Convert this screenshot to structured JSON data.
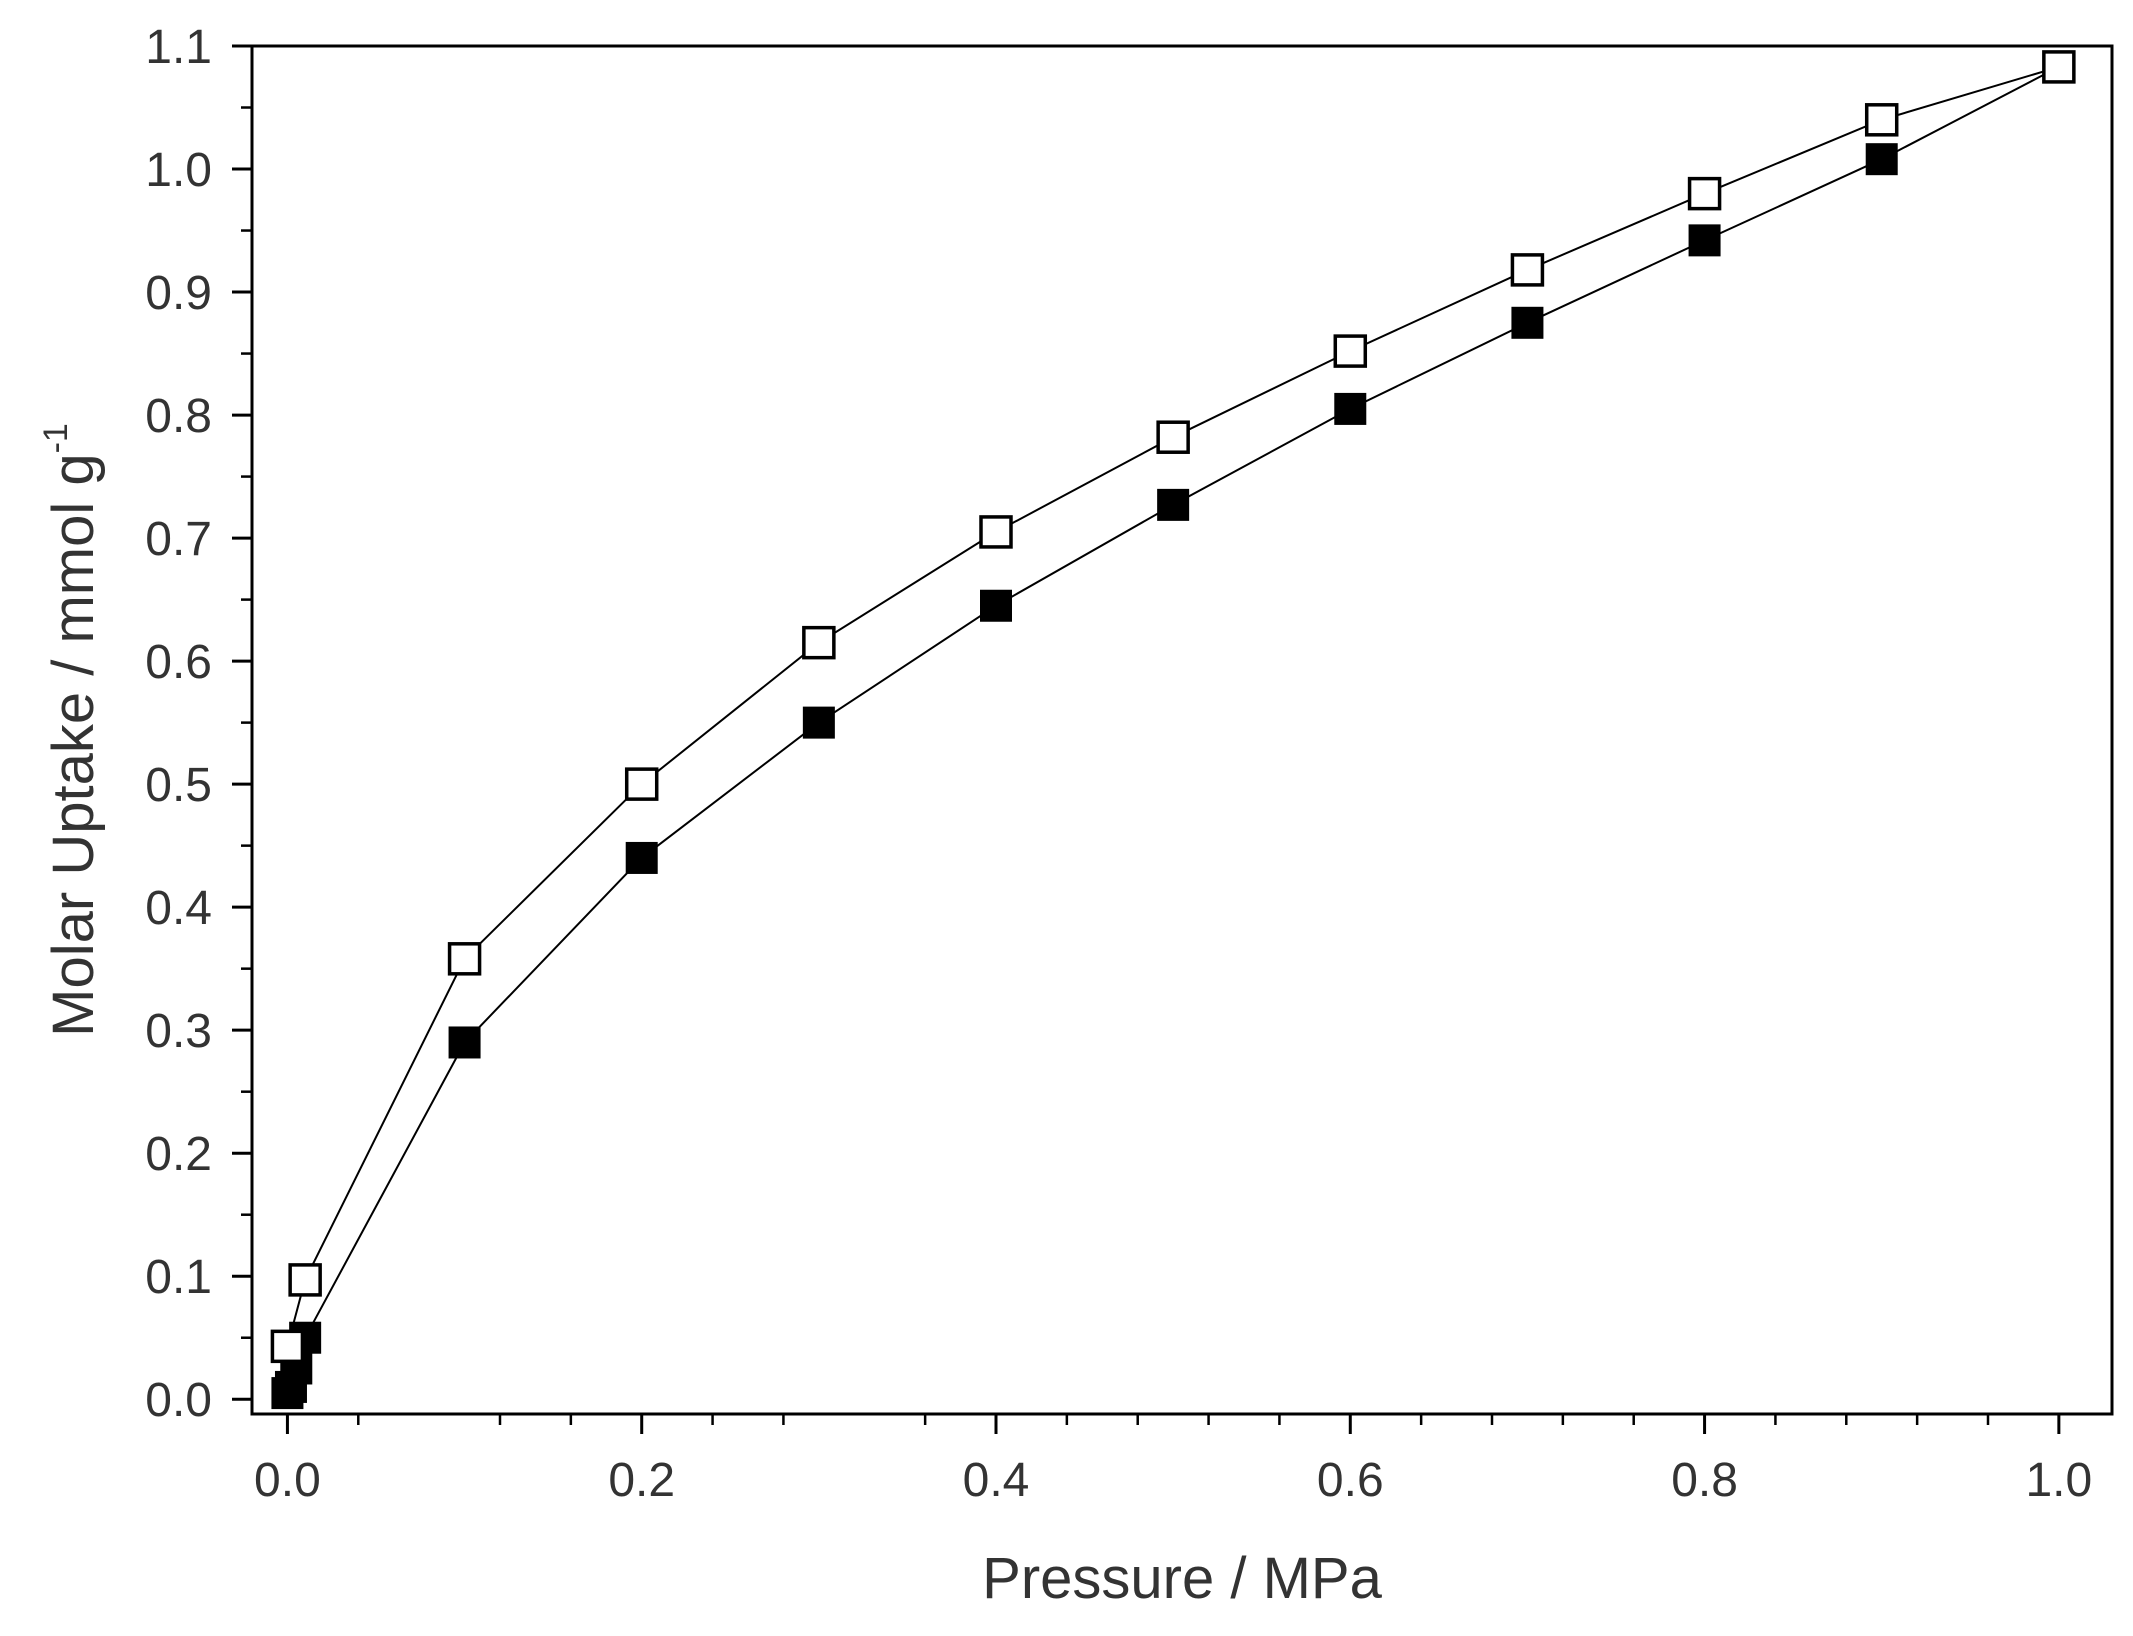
{
  "chart_data": {
    "type": "line",
    "title": "",
    "xlabel": "Pressure / MPa",
    "ylabel": "Molar Uptake / mmol g",
    "ylabel_superscript": "-1",
    "xlim": [
      -0.02,
      1.03
    ],
    "ylim": [
      -0.012,
      1.1
    ],
    "x_ticks": [
      0.0,
      0.2,
      0.4,
      0.6,
      0.8,
      1.0
    ],
    "x_tick_labels": [
      "0.0",
      "0.2",
      "0.4",
      "0.6",
      "0.8",
      "1.0"
    ],
    "x_minor_ticks": [
      0.04,
      0.12,
      0.16,
      0.24,
      0.28,
      0.36,
      0.44,
      0.48,
      0.52,
      0.56,
      0.64,
      0.68,
      0.72,
      0.76,
      0.84,
      0.88,
      0.92,
      0.96
    ],
    "y_ticks": [
      0.0,
      0.1,
      0.2,
      0.3,
      0.4,
      0.5,
      0.6,
      0.7,
      0.8,
      0.9,
      1.0,
      1.1
    ],
    "y_tick_labels": [
      "0.0",
      "0.1",
      "0.2",
      "0.3",
      "0.4",
      "0.5",
      "0.6",
      "0.7",
      "0.8",
      "0.9",
      "1.0",
      "1.1"
    ],
    "grid": false,
    "legend": "none",
    "series": [
      {
        "name": "filled squares",
        "marker": "square-filled",
        "color": "#000000",
        "x": [
          0.0,
          0.002,
          0.005,
          0.01,
          0.1,
          0.2,
          0.3,
          0.4,
          0.5,
          0.6,
          0.7,
          0.8,
          0.9,
          1.0
        ],
        "y": [
          0.005,
          0.01,
          0.025,
          0.05,
          0.29,
          0.44,
          0.55,
          0.645,
          0.727,
          0.805,
          0.875,
          0.942,
          1.008,
          1.083
        ]
      },
      {
        "name": "open squares",
        "marker": "square-open",
        "color": "#000000",
        "x": [
          0.0,
          0.01,
          0.1,
          0.2,
          0.3,
          0.4,
          0.5,
          0.6,
          0.7,
          0.8,
          0.9,
          1.0
        ],
        "y": [
          0.043,
          0.097,
          0.358,
          0.5,
          0.615,
          0.705,
          0.782,
          0.852,
          0.918,
          0.98,
          1.04,
          1.083
        ]
      }
    ]
  }
}
